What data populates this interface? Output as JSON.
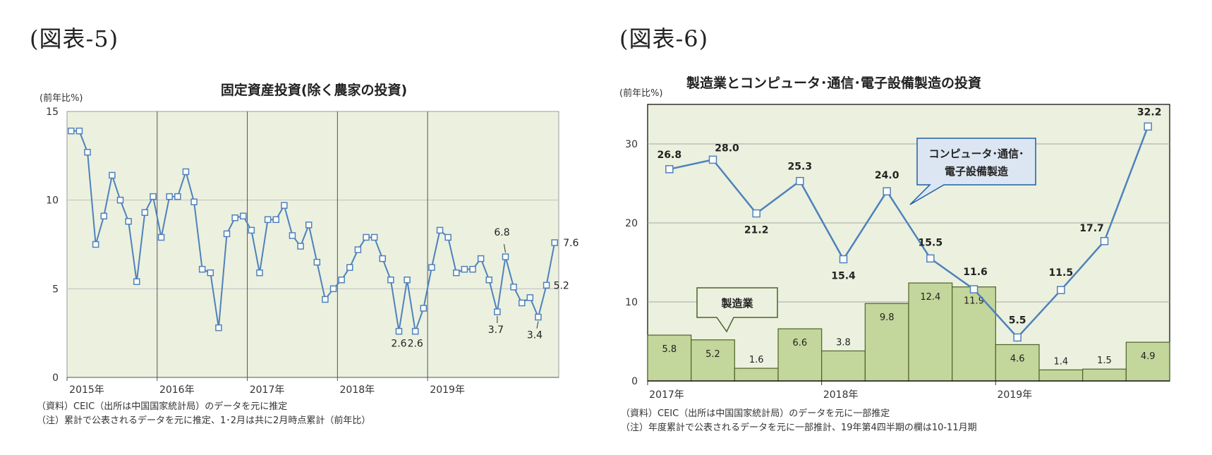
{
  "fig5": {
    "label": "(図表-5)",
    "chart_data": {
      "type": "line",
      "title": "固定資産投資(除く農家の投資)",
      "unit_label": "(前年比%)",
      "ylim": [
        0,
        15
      ],
      "yticks": [
        0,
        5,
        10,
        15
      ],
      "x_tick_labels": [
        "2015年",
        "2016年",
        "2017年",
        "2018年",
        "2019年"
      ],
      "x_tick_index": [
        0,
        11,
        22,
        33,
        44
      ],
      "series": [
        {
          "values": [
            13.9,
            13.9,
            12.7,
            7.5,
            9.1,
            11.4,
            10.0,
            8.8,
            5.4,
            9.3,
            10.2,
            7.9,
            10.2,
            10.2,
            11.6,
            9.9,
            6.1,
            5.9,
            2.8,
            8.1,
            9.0,
            9.1,
            8.3,
            5.9,
            8.9,
            8.9,
            9.7,
            8.0,
            7.4,
            8.6,
            6.5,
            4.4,
            5.0,
            5.5,
            6.2,
            7.2,
            7.9,
            7.9,
            6.7,
            5.5,
            2.6,
            5.5,
            2.6,
            3.9,
            6.2,
            8.3,
            7.9,
            5.9,
            6.1,
            6.1,
            6.7,
            5.5,
            3.7,
            6.8,
            5.1,
            4.2,
            4.5,
            3.4,
            5.2,
            7.6
          ]
        }
      ],
      "annotations": [
        {
          "text": "2.6",
          "index": 40
        },
        {
          "text": "2.6",
          "index": 42
        },
        {
          "text": "6.8",
          "index": 53
        },
        {
          "text": "3.7",
          "index": 52
        },
        {
          "text": "3.4",
          "index": 57
        },
        {
          "text": "5.2",
          "index": 58
        },
        {
          "text": "7.6",
          "index": 59
        }
      ],
      "colors": {
        "line": "#4f81bd",
        "plot_bg": "#ebf1de",
        "grid": "#bfbfbf"
      }
    },
    "notes": [
      "（資料）CEIC（出所は中国国家統計局）のデータを元に推定",
      "（注）累計で公表されるデータを元に推定、1･2月は共に2月時点累計（前年比）"
    ]
  },
  "fig6": {
    "label": "(図表-6)",
    "chart_data": {
      "type": "bar",
      "title": "製造業とコンピュータ･通信･電子設備製造の投資",
      "unit_label": "(前年比%)",
      "ylim": [
        0,
        35
      ],
      "yticks": [
        0,
        10,
        20,
        30
      ],
      "x_tick_labels": [
        "2017年",
        "2018年",
        "2019年"
      ],
      "x_tick_index": [
        0,
        4,
        8
      ],
      "series": [
        {
          "name": "製造業",
          "kind": "bar",
          "values": [
            5.8,
            5.2,
            1.6,
            6.6,
            3.8,
            9.8,
            12.4,
            11.9,
            4.6,
            1.4,
            1.5,
            4.9
          ],
          "labels": [
            "5.8",
            "5.2",
            "1.6",
            "6.6",
            "3.8",
            "9.8",
            "12.4",
            "11.9",
            "4.6",
            "1.4",
            "1.5",
            "4.9"
          ]
        },
        {
          "name": "コンピュータ･通信･電子設備製造",
          "kind": "line",
          "values": [
            26.8,
            28.0,
            21.2,
            25.3,
            15.4,
            24.0,
            15.5,
            11.6,
            5.5,
            11.5,
            17.7,
            32.2
          ],
          "labels": [
            "26.8",
            "28.0",
            "21.2",
            "25.3",
            "15.4",
            "24.0",
            "15.5",
            "11.6",
            "5.5",
            "11.5",
            "17.7",
            "32.2"
          ]
        }
      ],
      "callouts": {
        "line_line1": "コンピュータ･通信･",
        "line_line2": "電子設備製造",
        "bar": "製造業"
      },
      "colors": {
        "bar": "#c3d69b",
        "bar_edge": "#4f6228",
        "line": "#4f81bd",
        "plot_bg": "#ebf1de",
        "grid": "#a6a6a6",
        "callout_blue_bg": "#dce6f2",
        "callout_blue_edge": "#1f5fa8",
        "callout_green_bg": "#ebf1de",
        "callout_green_edge": "#4f6228"
      }
    },
    "notes": [
      "（資料）CEIC（出所は中国国家統計局）のデータを元に一部推定",
      "（注）年度累計で公表されるデータを元に一部推計、19年第4四半期の欄は10-11月期"
    ]
  }
}
